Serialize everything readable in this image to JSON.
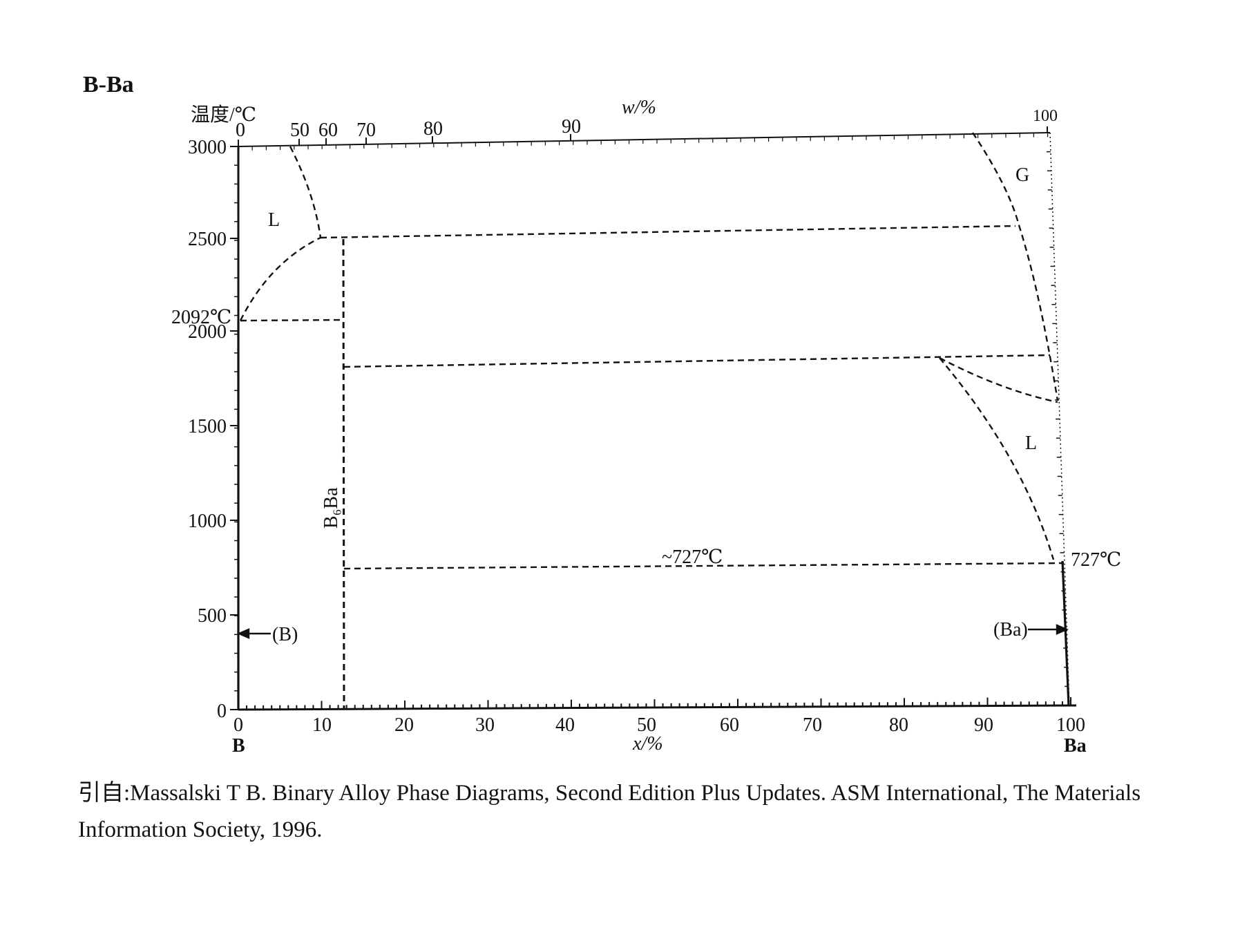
{
  "title": "B-Ba",
  "axes": {
    "y_label": "温度/℃",
    "x_label": "x/%",
    "w_label": "w/%",
    "x_ticks": [
      "0",
      "10",
      "20",
      "30",
      "40",
      "50",
      "60",
      "70",
      "80",
      "90",
      "100"
    ],
    "y_ticks": [
      "0",
      "500",
      "1000",
      "1500",
      "2000",
      "2500",
      "3000"
    ],
    "w_ticks": [
      "0",
      "50",
      "60",
      "70",
      "80",
      "90",
      "100"
    ],
    "left_element": "B",
    "right_element": "Ba"
  },
  "annotations": {
    "b_melting": "2092℃",
    "eutectic": "~727℃",
    "ba_melting": "727℃"
  },
  "phases": {
    "liquid_left": "L",
    "liquid_right": "L",
    "gas": "G",
    "compound": "B₆Ba",
    "solid_b": "(B)",
    "solid_ba": "(Ba)"
  },
  "citation": {
    "prefix": "引自:",
    "text": "Massalski T B. Binary Alloy Phase Diagrams, Second Edition Plus Updates. ASM International, The Materials Information Society, 1996."
  },
  "diagram_data": {
    "x_range": [
      0,
      100
    ],
    "y_range": [
      0,
      3000
    ],
    "b_melting_point_c": 2092,
    "b6ba_composition_x": 13,
    "b6ba_melting_c": 2500,
    "monotectic_c": 1800,
    "eutectic_c": 727,
    "ba_melting_c": 727
  }
}
